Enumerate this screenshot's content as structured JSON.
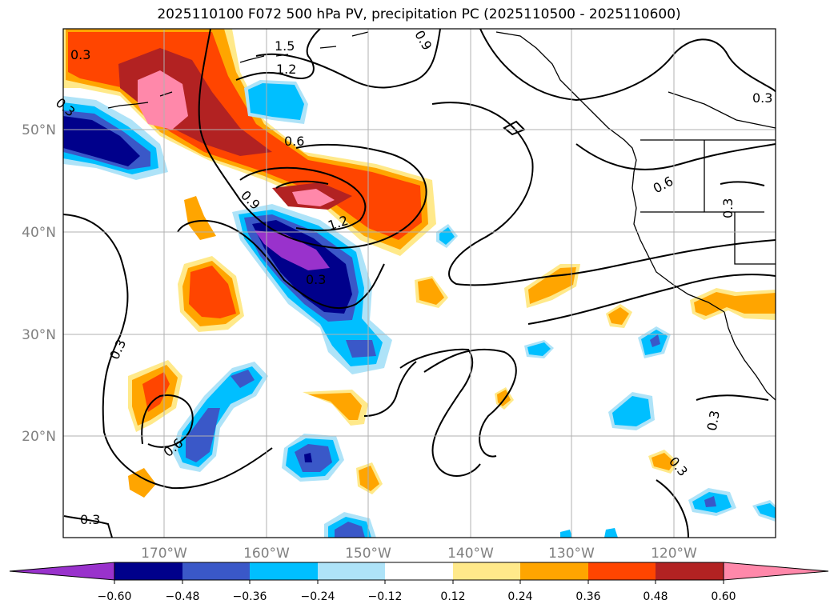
{
  "title": "2025110100 F072 500 hPa PV, precipitation PC (2025110500 - 2025110600)",
  "map": {
    "lon_labels": [
      "170°W",
      "160°W",
      "150°W",
      "140°W",
      "130°W",
      "120°W"
    ],
    "lat_labels": [
      "50°N",
      "40°N",
      "30°N",
      "20°N"
    ]
  },
  "contour_labels": [
    "0.3",
    "1.5",
    "1.2",
    "0.9",
    "0.3",
    "0.6",
    "0.9",
    "1.2",
    "0.3",
    "0.6",
    "0.3",
    "0.3",
    "0.6",
    "0.3",
    "0.3",
    "0.3",
    "0.3"
  ],
  "colorbar": {
    "ticks": [
      "−0.60",
      "−0.48",
      "−0.36",
      "−0.24",
      "−0.12",
      "0.12",
      "0.24",
      "0.36",
      "0.48",
      "0.60"
    ],
    "colors": [
      "#9932cc",
      "#00008b",
      "#3a58c8",
      "#00bfff",
      "#aee3f8",
      "#ffffff",
      "#ffe98a",
      "#ffa500",
      "#ff4500",
      "#b22222",
      "#ff88aa"
    ]
  }
}
